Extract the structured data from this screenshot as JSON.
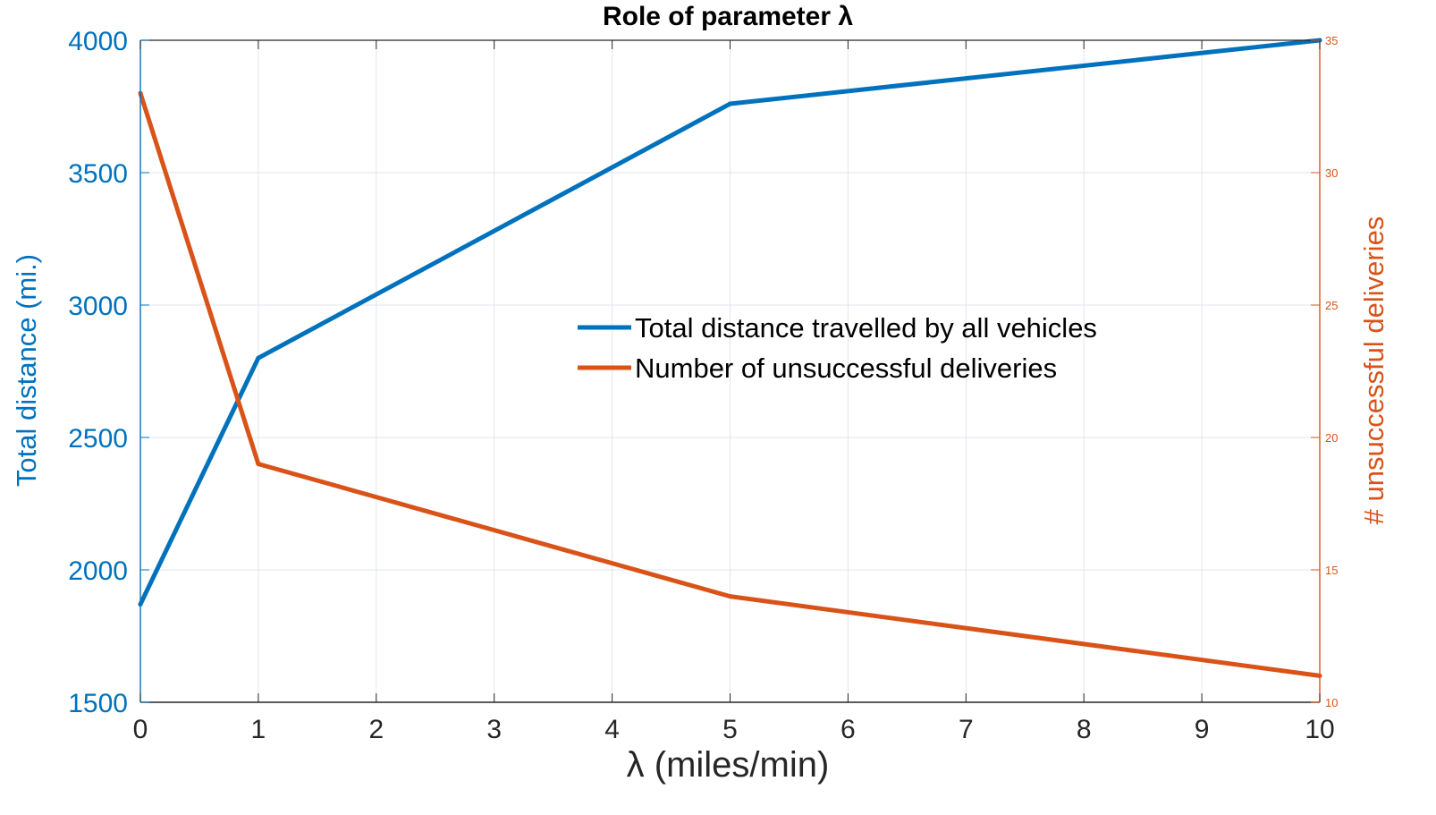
{
  "chart_data": {
    "type": "line",
    "title": "Role of parameter λ",
    "xlabel": "λ (miles/min)",
    "ylabel": "Total distance (mi.)",
    "y2label": "# unsuccessful deliveries",
    "xlim": [
      0,
      10
    ],
    "ylim": [
      1500,
      4000
    ],
    "y2lim": [
      10,
      35
    ],
    "xticks": [
      0,
      1,
      2,
      3,
      4,
      5,
      6,
      7,
      8,
      9,
      10
    ],
    "yticks": [
      1500,
      2000,
      2500,
      3000,
      3500,
      4000
    ],
    "y2ticks": [
      10,
      15,
      20,
      25,
      30,
      35
    ],
    "grid": true,
    "legend_position": "center-right",
    "series": [
      {
        "name": "Total distance travelled by all vehicles",
        "axis": "left",
        "color": "#0072BD",
        "x": [
          0,
          1,
          5,
          10
        ],
        "y": [
          1870,
          2800,
          3760,
          4000
        ]
      },
      {
        "name": "Number of unsuccessful deliveries",
        "axis": "right",
        "color": "#D95319",
        "x": [
          0,
          1,
          5,
          10
        ],
        "y": [
          33,
          19,
          14,
          11
        ]
      }
    ]
  }
}
